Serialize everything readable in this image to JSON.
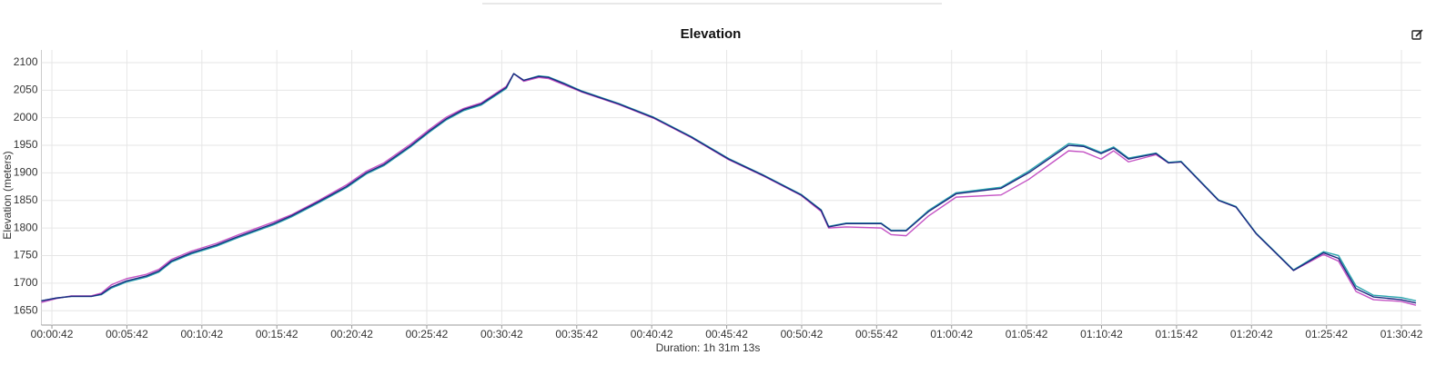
{
  "chart_data": {
    "type": "line",
    "title": "Elevation",
    "x_label": "Duration: 1h 31m 13s",
    "y_label": "Elevation (meters)",
    "x": [
      0,
      60,
      120,
      200,
      240,
      280,
      340,
      420,
      470,
      520,
      600,
      700,
      790,
      930,
      1000,
      1110,
      1220,
      1300,
      1370,
      1480,
      1550,
      1620,
      1690,
      1760,
      1860,
      1890,
      1930,
      1990,
      2030,
      2090,
      2160,
      2310,
      2450,
      2600,
      2750,
      2890,
      3040,
      3120,
      3150,
      3220,
      3360,
      3400,
      3460,
      3550,
      3660,
      3840,
      3950,
      4110,
      4170,
      4240,
      4290,
      4350,
      4460,
      4510,
      4560,
      4710,
      4780,
      4860,
      5010,
      5130,
      5190,
      5260,
      5330,
      5440,
      5500
    ],
    "series": [
      {
        "color": "#c452c4",
        "values": [
          1665,
          1672,
          1677,
          1677,
          1682,
          1697,
          1708,
          1716,
          1725,
          1743,
          1758,
          1772,
          1788,
          1811,
          1824,
          1850,
          1878,
          1903,
          1918,
          1953,
          1978,
          2001,
          2017,
          2027,
          2057,
          2080,
          2066,
          2073,
          2071,
          2060,
          2047,
          2024,
          1999,
          1964,
          1924,
          1894,
          1859,
          1830,
          1800,
          1802,
          1800,
          1788,
          1786,
          1822,
          1856,
          1860,
          1888,
          1940,
          1938,
          1925,
          1940,
          1920,
          1933,
          1918,
          1920,
          1850,
          1838,
          1790,
          1723,
          1752,
          1740,
          1685,
          1670,
          1667,
          1660
        ]
      },
      {
        "color": "#2aa5ae",
        "values": [
          1668,
          1673,
          1676,
          1676,
          1679,
          1691,
          1702,
          1711,
          1720,
          1738,
          1753,
          1767,
          1783,
          1806,
          1820,
          1846,
          1873,
          1898,
          1913,
          1948,
          1973,
          1996,
          2013,
          2023,
          2053,
          2080,
          2068,
          2076,
          2074,
          2063,
          2049,
          2026,
          2001,
          1966,
          1926,
          1896,
          1861,
          1833,
          1803,
          1809,
          1809,
          1796,
          1796,
          1832,
          1864,
          1874,
          1903,
          1953,
          1950,
          1937,
          1947,
          1927,
          1936,
          1919,
          1921,
          1851,
          1839,
          1791,
          1724,
          1757,
          1750,
          1695,
          1678,
          1674,
          1668
        ]
      },
      {
        "color": "#1c2a80",
        "values": [
          1668,
          1673,
          1676,
          1676,
          1680,
          1693,
          1704,
          1713,
          1722,
          1740,
          1755,
          1769,
          1785,
          1808,
          1822,
          1848,
          1875,
          1900,
          1915,
          1950,
          1975,
          1998,
          2015,
          2025,
          2055,
          2080,
          2068,
          2075,
          2073,
          2062,
          2048,
          2025,
          2000,
          1965,
          1925,
          1895,
          1860,
          1832,
          1802,
          1808,
          1808,
          1795,
          1795,
          1830,
          1862,
          1872,
          1900,
          1950,
          1948,
          1935,
          1945,
          1925,
          1935,
          1918,
          1920,
          1850,
          1838,
          1790,
          1723,
          1755,
          1745,
          1690,
          1675,
          1670,
          1664
        ]
      }
    ],
    "xlim": [
      0,
      5520
    ],
    "xticks": [
      {
        "value": 42,
        "label": "00:00:42"
      },
      {
        "value": 342,
        "label": "00:05:42"
      },
      {
        "value": 642,
        "label": "00:10:42"
      },
      {
        "value": 942,
        "label": "00:15:42"
      },
      {
        "value": 1242,
        "label": "00:20:42"
      },
      {
        "value": 1542,
        "label": "00:25:42"
      },
      {
        "value": 1842,
        "label": "00:30:42"
      },
      {
        "value": 2142,
        "label": "00:35:42"
      },
      {
        "value": 2442,
        "label": "00:40:42"
      },
      {
        "value": 2742,
        "label": "00:45:42"
      },
      {
        "value": 3042,
        "label": "00:50:42"
      },
      {
        "value": 3342,
        "label": "00:55:42"
      },
      {
        "value": 3642,
        "label": "01:00:42"
      },
      {
        "value": 3942,
        "label": "01:05:42"
      },
      {
        "value": 4242,
        "label": "01:10:42"
      },
      {
        "value": 4542,
        "label": "01:15:42"
      },
      {
        "value": 4842,
        "label": "01:20:42"
      },
      {
        "value": 5142,
        "label": "01:25:42"
      },
      {
        "value": 5442,
        "label": "01:30:42"
      }
    ],
    "ylim": [
      1624,
      2123
    ],
    "yticks": [
      1650,
      1700,
      1750,
      1800,
      1850,
      1900,
      1950,
      2000,
      2050,
      2100
    ],
    "grid": true
  }
}
